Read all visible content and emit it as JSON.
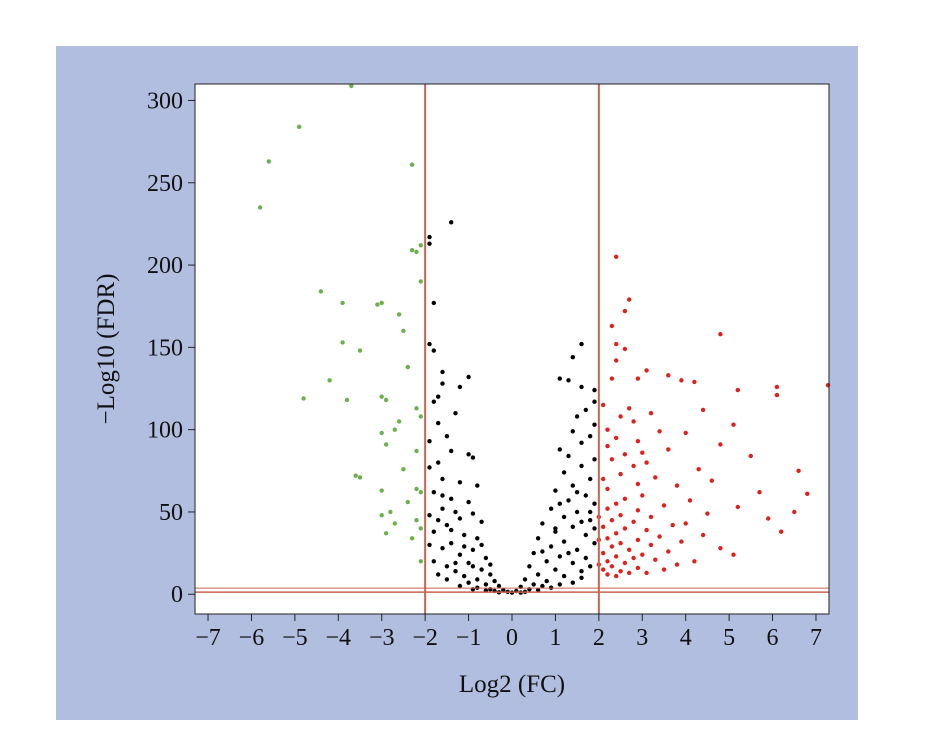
{
  "chart_data": {
    "type": "scatter",
    "title": "",
    "xlabel": "Log2 (FC)",
    "ylabel": "−Log10 (FDR)",
    "xlim": [
      -7.3,
      7.3
    ],
    "ylim": [
      -12,
      310
    ],
    "xticks": [
      -7,
      -6,
      -5,
      -4,
      -3,
      -2,
      -1,
      0,
      1,
      2,
      3,
      4,
      5,
      6,
      7
    ],
    "yticks": [
      0,
      50,
      100,
      150,
      200,
      250,
      300
    ],
    "thresholds": {
      "log2fc": [
        -2,
        2
      ],
      "neg_log10_fdr": 1.3
    },
    "colors": {
      "background": "#b1bedf",
      "plot_area": "#ffffff",
      "threshold_line": "#c86450",
      "down": "#6ab04c",
      "neutral": "#000000",
      "up": "#e0201c"
    },
    "series": [
      {
        "key": "down",
        "points": [
          [
            -3.7,
            310
          ],
          [
            -4.9,
            284
          ],
          [
            -5.6,
            263
          ],
          [
            -2.3,
            261
          ],
          [
            -5.8,
            235
          ],
          [
            -2.1,
            212
          ],
          [
            -2.3,
            209
          ],
          [
            -2.2,
            208
          ],
          [
            -2.1,
            190
          ],
          [
            -4.4,
            184
          ],
          [
            -3.9,
            177
          ],
          [
            -3.1,
            176
          ],
          [
            -3.0,
            177
          ],
          [
            -2.6,
            170
          ],
          [
            -2.5,
            160
          ],
          [
            -3.9,
            153
          ],
          [
            -3.5,
            148
          ],
          [
            -2.4,
            138
          ],
          [
            -4.2,
            130
          ],
          [
            -3.0,
            120
          ],
          [
            -2.9,
            118
          ],
          [
            -4.8,
            119
          ],
          [
            -3.8,
            118
          ],
          [
            -2.2,
            113
          ],
          [
            -2.1,
            108
          ],
          [
            -2.6,
            105
          ],
          [
            -2.7,
            100
          ],
          [
            -3.0,
            98
          ],
          [
            -2.9,
            91
          ],
          [
            -2.2,
            87
          ],
          [
            -2.5,
            76
          ],
          [
            -3.6,
            72
          ],
          [
            -3.5,
            71
          ],
          [
            -2.2,
            64
          ],
          [
            -2.1,
            62
          ],
          [
            -3.0,
            63
          ],
          [
            -2.4,
            56
          ],
          [
            -2.8,
            50
          ],
          [
            -3.0,
            48
          ],
          [
            -2.2,
            45
          ],
          [
            -2.7,
            43
          ],
          [
            -2.1,
            40
          ],
          [
            -2.9,
            37
          ],
          [
            -2.3,
            34
          ],
          [
            -2.1,
            20
          ]
        ]
      },
      {
        "key": "neutral",
        "points": [
          [
            -1.4,
            226
          ],
          [
            -1.9,
            217
          ],
          [
            -1.9,
            213
          ],
          [
            -1.8,
            177
          ],
          [
            -1.9,
            152
          ],
          [
            -1.8,
            148
          ],
          [
            -1.6,
            135
          ],
          [
            -1.0,
            132
          ],
          [
            -1.6,
            128
          ],
          [
            -1.2,
            126
          ],
          [
            -1.7,
            120
          ],
          [
            -1.8,
            117
          ],
          [
            -1.3,
            110
          ],
          [
            -1.7,
            104
          ],
          [
            -1.5,
            96
          ],
          [
            -1.9,
            93
          ],
          [
            -1.4,
            87
          ],
          [
            -1.0,
            85
          ],
          [
            -0.9,
            83
          ],
          [
            -1.7,
            80
          ],
          [
            -1.9,
            77
          ],
          [
            -1.6,
            70
          ],
          [
            -1.2,
            68
          ],
          [
            -0.8,
            66
          ],
          [
            -1.8,
            62
          ],
          [
            -1.4,
            58
          ],
          [
            -1.0,
            56
          ],
          [
            -1.6,
            52
          ],
          [
            -1.9,
            48
          ],
          [
            -1.2,
            46
          ],
          [
            -0.7,
            44
          ],
          [
            -1.5,
            42
          ],
          [
            -1.8,
            38
          ],
          [
            -1.1,
            36
          ],
          [
            -0.8,
            34
          ],
          [
            -1.4,
            31
          ],
          [
            -1.6,
            28
          ],
          [
            -0.9,
            27
          ],
          [
            -1.2,
            24
          ],
          [
            -0.6,
            22
          ],
          [
            -1.8,
            20
          ],
          [
            -1.0,
            19
          ],
          [
            -1.5,
            17
          ],
          [
            -0.7,
            15
          ],
          [
            -1.3,
            14
          ],
          [
            -0.5,
            12
          ],
          [
            -1.1,
            11
          ],
          [
            -0.8,
            9
          ],
          [
            -0.4,
            8
          ],
          [
            -1.0,
            7
          ],
          [
            -0.6,
            6
          ],
          [
            -0.3,
            5
          ],
          [
            -0.8,
            4
          ],
          [
            -0.5,
            3
          ],
          [
            -0.2,
            2.5
          ],
          [
            -0.4,
            2
          ],
          [
            -0.1,
            1.5
          ],
          [
            0.0,
            1
          ],
          [
            -0.3,
            1.2
          ],
          [
            -0.6,
            2.2
          ],
          [
            -0.9,
            3
          ],
          [
            -1.2,
            5
          ],
          [
            -1.5,
            9
          ],
          [
            -1.7,
            12
          ],
          [
            -1.3,
            19
          ],
          [
            -0.9,
            17
          ],
          [
            -1.1,
            29
          ],
          [
            -1.4,
            39
          ],
          [
            -0.9,
            49
          ],
          [
            -1.6,
            60
          ],
          [
            -0.7,
            30
          ],
          [
            -0.5,
            18
          ],
          [
            -1.9,
            30
          ],
          [
            -1.7,
            45
          ],
          [
            -1.3,
            50
          ],
          [
            1.6,
            152
          ],
          [
            1.4,
            144
          ],
          [
            1.1,
            131
          ],
          [
            1.3,
            130
          ],
          [
            1.6,
            126
          ],
          [
            1.9,
            124
          ],
          [
            1.9,
            117
          ],
          [
            1.7,
            112
          ],
          [
            1.5,
            108
          ],
          [
            1.9,
            103
          ],
          [
            1.4,
            99
          ],
          [
            1.8,
            96
          ],
          [
            1.6,
            92
          ],
          [
            1.1,
            88
          ],
          [
            1.3,
            84
          ],
          [
            1.9,
            82
          ],
          [
            1.6,
            78
          ],
          [
            1.2,
            74
          ],
          [
            1.8,
            70
          ],
          [
            1.4,
            66
          ],
          [
            1.0,
            63
          ],
          [
            1.7,
            60
          ],
          [
            1.3,
            57
          ],
          [
            1.9,
            55
          ],
          [
            0.9,
            52
          ],
          [
            1.5,
            50
          ],
          [
            1.2,
            47
          ],
          [
            1.8,
            45
          ],
          [
            0.7,
            43
          ],
          [
            1.4,
            41
          ],
          [
            1.0,
            38
          ],
          [
            1.7,
            36
          ],
          [
            0.6,
            34
          ],
          [
            1.2,
            32
          ],
          [
            1.9,
            31
          ],
          [
            0.9,
            29
          ],
          [
            1.5,
            27
          ],
          [
            0.5,
            25
          ],
          [
            1.1,
            23
          ],
          [
            1.7,
            22
          ],
          [
            0.8,
            20
          ],
          [
            1.4,
            19
          ],
          [
            0.4,
            17
          ],
          [
            1.0,
            15
          ],
          [
            1.6,
            14
          ],
          [
            0.6,
            12
          ],
          [
            1.2,
            11
          ],
          [
            0.3,
            9
          ],
          [
            0.8,
            8
          ],
          [
            1.4,
            7
          ],
          [
            0.5,
            6
          ],
          [
            0.2,
            4.5
          ],
          [
            0.9,
            4
          ],
          [
            0.4,
            3
          ],
          [
            0.1,
            2
          ],
          [
            0.6,
            2.5
          ],
          [
            0.3,
            1.5
          ],
          [
            0.2,
            1
          ],
          [
            0.7,
            5
          ],
          [
            1.1,
            6
          ],
          [
            1.6,
            10
          ],
          [
            1.8,
            17
          ],
          [
            1.3,
            25
          ],
          [
            0.7,
            26
          ],
          [
            1.0,
            40
          ],
          [
            1.6,
            44
          ],
          [
            1.9,
            40
          ],
          [
            1.1,
            55
          ],
          [
            1.5,
            62
          ],
          [
            1.8,
            50
          ]
        ]
      },
      {
        "key": "up",
        "points": [
          [
            2.4,
            205
          ],
          [
            2.7,
            179
          ],
          [
            2.6,
            172
          ],
          [
            2.3,
            163
          ],
          [
            4.8,
            158
          ],
          [
            2.4,
            152
          ],
          [
            2.6,
            149
          ],
          [
            2.4,
            142
          ],
          [
            3.1,
            136
          ],
          [
            3.6,
            133
          ],
          [
            2.3,
            131
          ],
          [
            2.9,
            131
          ],
          [
            3.9,
            130
          ],
          [
            4.2,
            129
          ],
          [
            6.1,
            126
          ],
          [
            7.3,
            127
          ],
          [
            5.2,
            124
          ],
          [
            6.1,
            121
          ],
          [
            2.1,
            115
          ],
          [
            2.7,
            113
          ],
          [
            4.4,
            112
          ],
          [
            3.2,
            110
          ],
          [
            2.5,
            108
          ],
          [
            2.8,
            105
          ],
          [
            5.1,
            103
          ],
          [
            2.2,
            100
          ],
          [
            3.4,
            99
          ],
          [
            4.0,
            98
          ],
          [
            2.4,
            95
          ],
          [
            2.9,
            93
          ],
          [
            4.8,
            91
          ],
          [
            2.2,
            90
          ],
          [
            3.6,
            88
          ],
          [
            2.6,
            85
          ],
          [
            5.5,
            84
          ],
          [
            2.3,
            82
          ],
          [
            3.1,
            80
          ],
          [
            2.8,
            78
          ],
          [
            4.3,
            76
          ],
          [
            6.6,
            75
          ],
          [
            2.5,
            73
          ],
          [
            3.3,
            71
          ],
          [
            2.1,
            70
          ],
          [
            4.6,
            69
          ],
          [
            2.9,
            67
          ],
          [
            3.8,
            66
          ],
          [
            2.2,
            64
          ],
          [
            5.7,
            62
          ],
          [
            6.8,
            61
          ],
          [
            3.0,
            60
          ],
          [
            2.6,
            58
          ],
          [
            4.1,
            57
          ],
          [
            2.4,
            55
          ],
          [
            3.5,
            54
          ],
          [
            5.2,
            53
          ],
          [
            2.2,
            52
          ],
          [
            2.9,
            51
          ],
          [
            6.5,
            50
          ],
          [
            4.5,
            49
          ],
          [
            2.5,
            48
          ],
          [
            3.2,
            47
          ],
          [
            5.9,
            46
          ],
          [
            2.3,
            45
          ],
          [
            2.8,
            44
          ],
          [
            4.0,
            43
          ],
          [
            3.7,
            42
          ],
          [
            2.1,
            41
          ],
          [
            2.6,
            40
          ],
          [
            3.1,
            39
          ],
          [
            6.2,
            38
          ],
          [
            2.4,
            37
          ],
          [
            4.4,
            36
          ],
          [
            3.4,
            35
          ],
          [
            2.2,
            34
          ],
          [
            2.9,
            33
          ],
          [
            3.9,
            32
          ],
          [
            2.5,
            31
          ],
          [
            3.2,
            30
          ],
          [
            2.3,
            29
          ],
          [
            4.8,
            28
          ],
          [
            2.7,
            27
          ],
          [
            3.6,
            26
          ],
          [
            2.1,
            25
          ],
          [
            3.0,
            24
          ],
          [
            5.1,
            24
          ],
          [
            2.4,
            23
          ],
          [
            2.8,
            22
          ],
          [
            3.3,
            21
          ],
          [
            2.2,
            20
          ],
          [
            2.6,
            19
          ],
          [
            3.8,
            18
          ],
          [
            2.3,
            17
          ],
          [
            2.9,
            16
          ],
          [
            2.1,
            15
          ],
          [
            2.5,
            14
          ],
          [
            3.1,
            13
          ],
          [
            2.7,
            13
          ],
          [
            2.2,
            12
          ],
          [
            2.4,
            11
          ],
          [
            3.5,
            15
          ],
          [
            4.2,
            20
          ],
          [
            2.0,
            18
          ],
          [
            2.0,
            33
          ],
          [
            2.0,
            47
          ],
          [
            3.0,
            86
          ]
        ]
      }
    ]
  }
}
